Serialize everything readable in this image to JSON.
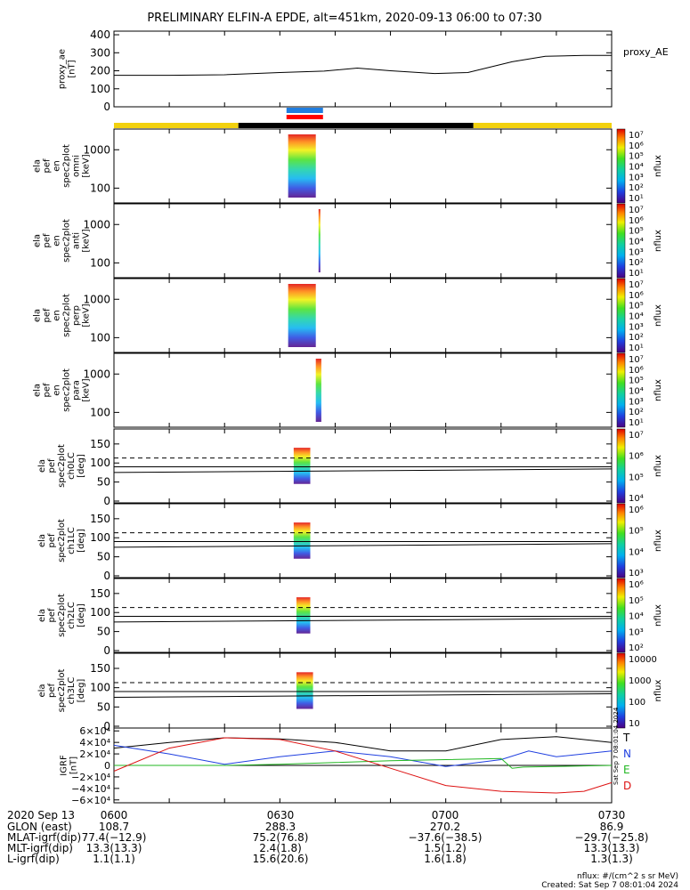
{
  "title": "PRELIMINARY ELFIN-A EPDE, alt=451km, 2020-09-13 06:00 to 07:30",
  "chart_data": [
    {
      "type": "line",
      "ylabel_lines": [
        "proxy_ae",
        "[nT]"
      ],
      "yticks": [
        "0",
        "100",
        "200",
        "300",
        "400"
      ],
      "ylim": [
        0,
        420
      ],
      "legend": "proxy_AE",
      "x_minutes": [
        0,
        10,
        20,
        30,
        38,
        44,
        50,
        58,
        64,
        72,
        78,
        85,
        90
      ],
      "values": [
        175,
        175,
        178,
        190,
        198,
        215,
        200,
        185,
        190,
        250,
        280,
        285,
        285
      ]
    },
    {
      "type": "table",
      "name": "bars",
      "segments": [
        {
          "from": 0,
          "to": 22.5,
          "color": "#f2d10e"
        },
        {
          "from": 22.5,
          "to": 65,
          "color": "#000000"
        },
        {
          "from": 65,
          "to": 90,
          "color": "#f2d10e"
        }
      ],
      "markers": [
        {
          "from": 31.2,
          "to": 37.8,
          "color": "#1f7de0"
        },
        {
          "from": 31.2,
          "to": 37.8,
          "color": "#ff0000"
        }
      ]
    },
    {
      "type": "heatmap",
      "ylabel_lines": [
        "ela",
        "pef",
        "en",
        "spec2plot",
        "omni",
        "[keV]"
      ],
      "yticks": [
        "100",
        "1000"
      ],
      "cbar_ticks": [
        "10⁷",
        "10⁶",
        "10⁵",
        "10⁴",
        "10³",
        "10²",
        "10¹"
      ],
      "cbar_label": "nflux",
      "x_range_minutes": [
        31.5,
        36.5
      ]
    },
    {
      "type": "heatmap",
      "ylabel_lines": [
        "ela",
        "pef",
        "en",
        "spec2plot",
        "anti",
        "[keV]"
      ],
      "yticks": [
        "100",
        "1000"
      ],
      "cbar_ticks": [
        "10⁷",
        "10⁶",
        "10⁵",
        "10⁴",
        "10³",
        "10²",
        "10¹"
      ],
      "cbar_label": "nflux",
      "x_range_minutes": [
        37.0,
        37.3
      ]
    },
    {
      "type": "heatmap",
      "ylabel_lines": [
        "ela",
        "pef",
        "en",
        "spec2plot",
        "perp",
        "[keV]"
      ],
      "yticks": [
        "100",
        "1000"
      ],
      "cbar_ticks": [
        "10⁷",
        "10⁶",
        "10⁵",
        "10⁴",
        "10³",
        "10²",
        "10¹"
      ],
      "cbar_label": "nflux",
      "x_range_minutes": [
        31.5,
        36.5
      ]
    },
    {
      "type": "heatmap",
      "ylabel_lines": [
        "ela",
        "pef",
        "en",
        "spec2plot",
        "para",
        "[keV]"
      ],
      "yticks": [
        "100",
        "1000"
      ],
      "cbar_ticks": [
        "10⁷",
        "10⁶",
        "10⁵",
        "10⁴",
        "10³",
        "10²",
        "10¹"
      ],
      "cbar_label": "nflux",
      "x_range_minutes": [
        36.5,
        37.5
      ]
    },
    {
      "type": "heatmap",
      "ylabel_lines": [
        "ela",
        "pef",
        "spec2plot",
        "ch0LC",
        "[deg]"
      ],
      "yticks": [
        "0",
        "50",
        "100",
        "150"
      ],
      "cbar_ticks": [
        "10⁷",
        "10⁶",
        "10⁵",
        "10⁴"
      ],
      "cbar_label": "nflux",
      "x_range_minutes": [
        32.5,
        35.5
      ],
      "losscone_deg": 90,
      "antilosscone_deg": 113
    },
    {
      "type": "heatmap",
      "ylabel_lines": [
        "ela",
        "pef",
        "spec2plot",
        "ch1LC",
        "[deg]"
      ],
      "yticks": [
        "0",
        "50",
        "100",
        "150"
      ],
      "cbar_ticks": [
        "10⁶",
        "10⁵",
        "10⁴",
        "10³"
      ],
      "cbar_label": "nflux",
      "x_range_minutes": [
        32.5,
        35.5
      ],
      "losscone_deg": 90,
      "antilosscone_deg": 113
    },
    {
      "type": "heatmap",
      "ylabel_lines": [
        "ela",
        "pef",
        "spec2plot",
        "ch2LC",
        "[deg]"
      ],
      "yticks": [
        "0",
        "50",
        "100",
        "150"
      ],
      "cbar_ticks": [
        "10⁶",
        "10⁵",
        "10⁴",
        "10³",
        "10²"
      ],
      "cbar_label": "nflux",
      "x_range_minutes": [
        33.0,
        35.5
      ],
      "losscone_deg": 90,
      "antilosscone_deg": 113
    },
    {
      "type": "heatmap",
      "ylabel_lines": [
        "ela",
        "pef",
        "spec2plot",
        "ch3LC",
        "[deg]"
      ],
      "yticks": [
        "0",
        "50",
        "100",
        "150"
      ],
      "cbar_ticks": [
        "10000",
        "1000",
        "100",
        "10"
      ],
      "cbar_label": "nflux",
      "x_range_minutes": [
        33.0,
        36.0
      ],
      "losscone_deg": 90,
      "antilosscone_deg": 113
    },
    {
      "type": "line",
      "ylabel_lines": [
        "IGRF",
        "[nT]"
      ],
      "yticks": [
        "−6×10⁴",
        "−4×10⁴",
        "−2×10⁴",
        "0",
        "2×10⁴",
        "4×10⁴",
        "6×10⁴"
      ],
      "ylim": [
        -65000,
        65000
      ],
      "side_text": "Sat Sep  7 08:01:04 2024",
      "series": [
        {
          "name": "T",
          "color": "#000000",
          "x_minutes": [
            0,
            10,
            20,
            30,
            40,
            50,
            60,
            70,
            80,
            90
          ],
          "values": [
            30000,
            40000,
            48000,
            46000,
            40000,
            25000,
            25000,
            45000,
            50000,
            40000
          ]
        },
        {
          "name": "N",
          "color": "#1f3fe0",
          "x_minutes": [
            0,
            10,
            20,
            30,
            40,
            50,
            60,
            70,
            75,
            80,
            90
          ],
          "values": [
            35000,
            20000,
            2000,
            15000,
            25000,
            15000,
            -2000,
            10000,
            25000,
            15000,
            25000
          ]
        },
        {
          "name": "E",
          "color": "#22b722",
          "x_minutes": [
            0,
            10,
            20,
            30,
            40,
            50,
            60,
            70,
            72,
            74,
            90
          ],
          "values": [
            0,
            0,
            0,
            2000,
            5000,
            8000,
            10000,
            12000,
            -5000,
            -3000,
            0
          ]
        },
        {
          "name": "D",
          "color": "#dd1111",
          "x_minutes": [
            0,
            10,
            20,
            30,
            40,
            50,
            60,
            70,
            80,
            85,
            90
          ],
          "values": [
            -10000,
            30000,
            48000,
            45000,
            25000,
            -5000,
            -35000,
            -45000,
            -48000,
            -45000,
            -30000
          ]
        }
      ]
    }
  ],
  "footer": {
    "date": "2020 Sep 13",
    "rows": [
      {
        "label": "GLON (east)",
        "values": [
          "108.7",
          "288.3",
          "270.2",
          "86.9"
        ]
      },
      {
        "label": "MLAT-igrf(dip)",
        "values": [
          "77.4(−12.9)",
          "75.2(76.8)",
          "−37.6(−38.5)",
          "−29.7(−25.8)"
        ]
      },
      {
        "label": "MLT-igrf(dip)",
        "values": [
          "13.3(13.3)",
          "2.4(1.8)",
          "1.5(1.2)",
          "13.3(13.3)"
        ]
      },
      {
        "label": "L-igrf(dip)",
        "values": [
          "1.1(1.1)",
          "15.6(20.6)",
          "1.6(1.8)",
          "1.3(1.3)"
        ]
      }
    ],
    "time_labels": [
      "0600",
      "0630",
      "0700",
      "0730"
    ],
    "units_note": "nflux: #/(cm^2 s sr MeV)",
    "created": "Created: Sat Sep  7 08:01:04 2024"
  }
}
